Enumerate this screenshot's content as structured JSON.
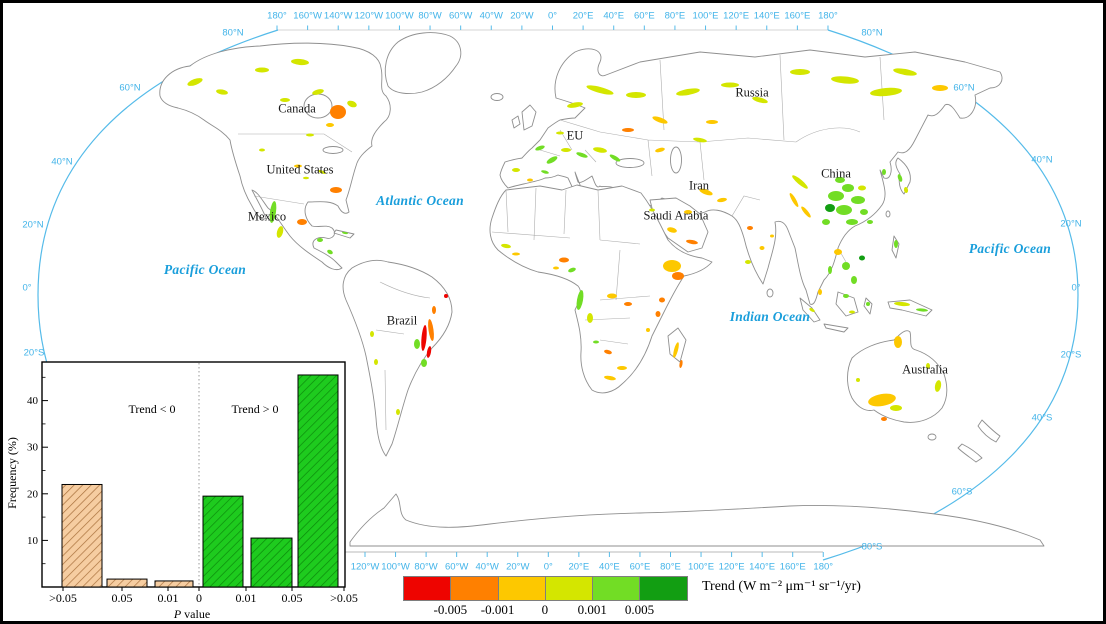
{
  "map": {
    "top_lon_labels": [
      "180°",
      "160°W",
      "140°W",
      "120°W",
      "100°W",
      "80°W",
      "60°W",
      "40°W",
      "20°W",
      "0°",
      "20°E",
      "40°E",
      "60°E",
      "80°E",
      "100°E",
      "120°E",
      "140°E",
      "160°E",
      "180°"
    ],
    "bottom_lon_labels": [
      "120°W",
      "100°W",
      "80°W",
      "60°W",
      "40°W",
      "20°W",
      "0°",
      "20°E",
      "40°E",
      "60°E",
      "80°E",
      "100°E",
      "120°E",
      "140°E",
      "160°E",
      "180°"
    ],
    "left_lat_labels": [
      "80°N",
      "60°N",
      "40°N",
      "20°N",
      "0°",
      "20°S"
    ],
    "right_lat_labels": [
      "80°N",
      "60°N",
      "40°N",
      "20°N",
      "0°",
      "20°S",
      "40°S",
      "60°S",
      "80°S"
    ],
    "oceans": {
      "pacific_west": "Pacific Ocean",
      "atlantic": "Atlantic Ocean",
      "indian": "Indian Ocean",
      "pacific_east": "Pacific Ocean"
    },
    "countries": {
      "canada": "Canada",
      "united_states": "United States",
      "mexico": "Mexico",
      "brazil": "Brazil",
      "eu": "EU",
      "russia": "Russia",
      "iran": "Iran",
      "saudi_arabia": "Saudi Arabia",
      "china": "China",
      "australia": "Australia"
    },
    "colors": {
      "graticule": "#55bbe9",
      "tick_label": "#43b4e9",
      "ocean_label": "#199edb",
      "coastline": "#8f8f8f"
    }
  },
  "legend": {
    "title": "Trend (W m⁻² μm⁻¹ sr⁻¹/yr)",
    "colors": [
      "#ee0400",
      "#ff8000",
      "#fdc800",
      "#d4e600",
      "#72dd25",
      "#129e12"
    ],
    "tick_labels": [
      "-0.005",
      "-0.001",
      "0",
      "0.001",
      "0.005"
    ]
  },
  "chart_data": {
    "type": "bar",
    "title": "",
    "xlabel": "P value",
    "ylabel": "Frequency (%)",
    "ylim": [
      0,
      48
    ],
    "y_ticks": [
      10,
      20,
      30,
      40
    ],
    "x_tick_labels": [
      ">0.05",
      "0.05",
      "0.01",
      "0",
      "0.01",
      "0.05",
      ">0.05"
    ],
    "annotations": [
      "Trend < 0",
      "Trend > 0"
    ],
    "series": [
      {
        "name": "Trend < 0",
        "fill": "#f6cda1",
        "hatch": "#a9713d",
        "values": [
          22,
          1.7,
          1.3
        ]
      },
      {
        "name": "Trend > 0",
        "fill": "#1ecb1e",
        "hatch": "#0b8a0b",
        "values": [
          19.5,
          10.5,
          45.5
        ]
      }
    ],
    "legend_position": "none",
    "grid": false
  }
}
